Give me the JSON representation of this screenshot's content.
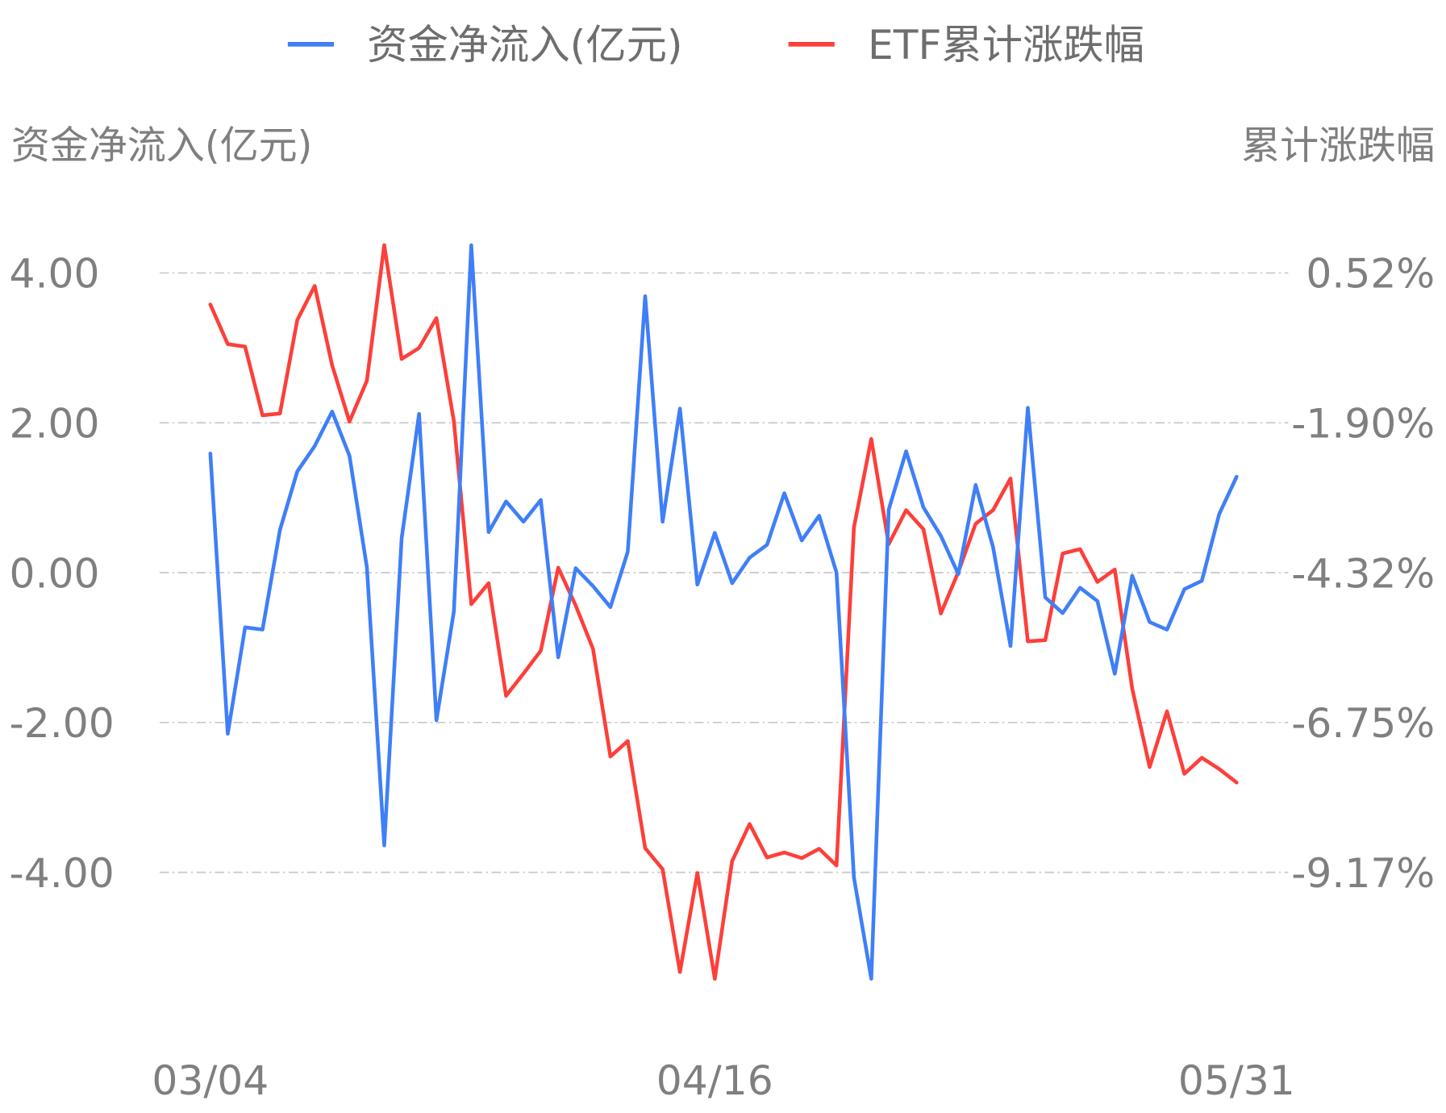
{
  "chart_data": {
    "type": "line",
    "legend": {
      "placement": "top-center"
    },
    "grid": true,
    "y_left_label": "资金净流入(亿元)",
    "y_right_label": "累计涨跌幅",
    "y_left_ticks": [
      "4.00",
      "2.00",
      "0.00",
      "-2.00",
      "-4.00"
    ],
    "y_left_tick_values": [
      4,
      2,
      0,
      -2,
      -4
    ],
    "y_right_ticks": [
      "0.52%",
      "-1.90%",
      "-4.32%",
      "-6.75%",
      "-9.17%"
    ],
    "y_right_tick_values": [
      0.52,
      -1.9,
      -4.32,
      -6.75,
      -9.17
    ],
    "x_ticks": [
      "03/04",
      "04/16",
      "05/31"
    ],
    "x": [
      "03/04",
      "03/05",
      "03/06",
      "03/07",
      "03/08",
      "03/11",
      "03/12",
      "03/13",
      "03/14",
      "03/15",
      "03/18",
      "03/19",
      "03/20",
      "03/21",
      "03/22",
      "03/25",
      "03/26",
      "03/27",
      "03/28",
      "03/29",
      "04/01",
      "04/02",
      "04/03",
      "04/08",
      "04/09",
      "04/10",
      "04/11",
      "04/12",
      "04/15",
      "04/16",
      "04/17",
      "04/18",
      "04/19",
      "04/22",
      "04/23",
      "04/24",
      "04/25",
      "04/26",
      "04/29",
      "04/30",
      "05/06",
      "05/07",
      "05/08",
      "05/09",
      "05/10",
      "05/13",
      "05/14",
      "05/15",
      "05/16",
      "05/17",
      "05/20",
      "05/21",
      "05/22",
      "05/23",
      "05/24",
      "05/27",
      "05/28",
      "05/29",
      "05/30",
      "05/31"
    ],
    "series": [
      {
        "name": "资金净流入(亿元)",
        "axis": "left",
        "color": "#3f7ff8",
        "values": [
          1.59,
          -2.15,
          -0.73,
          -0.76,
          0.57,
          1.35,
          1.69,
          2.15,
          1.56,
          0.07,
          -3.64,
          0.46,
          2.12,
          -1.97,
          -0.52,
          4.37,
          0.54,
          0.95,
          0.68,
          0.97,
          -1.13,
          0.06,
          -0.18,
          -0.46,
          0.28,
          3.69,
          0.68,
          2.19,
          -0.16,
          0.53,
          -0.14,
          0.2,
          0.37,
          1.06,
          0.43,
          0.76,
          0.0,
          -4.07,
          -5.42,
          0.84,
          1.62,
          0.87,
          0.49,
          -0.02,
          1.17,
          0.34,
          -0.98,
          2.2,
          -0.33,
          -0.54,
          -0.2,
          -0.38,
          -1.35,
          -0.04,
          -0.66,
          -0.76,
          -0.22,
          -0.11,
          0.78,
          1.28
        ]
      },
      {
        "name": "ETF累计涨跌幅",
        "axis": "right",
        "unit": "%",
        "color": "#fd3f3a",
        "values": [
          0.01,
          -0.63,
          -0.67,
          -1.78,
          -1.75,
          -0.24,
          0.31,
          -0.97,
          -1.88,
          -1.22,
          0.97,
          -0.87,
          -0.69,
          -0.21,
          -1.87,
          -4.83,
          -4.49,
          -6.31,
          -5.95,
          -5.58,
          -4.24,
          -4.85,
          -5.55,
          -7.29,
          -7.04,
          -8.77,
          -9.11,
          -10.77,
          -9.17,
          -10.88,
          -8.98,
          -8.38,
          -8.92,
          -8.84,
          -8.93,
          -8.78,
          -9.05,
          -3.59,
          -2.16,
          -3.86,
          -3.31,
          -3.62,
          -4.98,
          -4.31,
          -3.53,
          -3.31,
          -2.8,
          -5.43,
          -5.41,
          -4.01,
          -3.94,
          -4.47,
          -4.27,
          -6.19,
          -7.46,
          -6.56,
          -7.57,
          -7.31,
          -7.49,
          -7.71
        ]
      }
    ]
  }
}
